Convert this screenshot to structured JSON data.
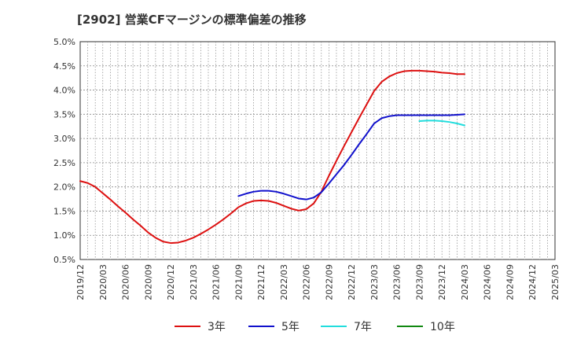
{
  "chart_data": {
    "type": "line",
    "title": "[2902]  営業CFマージンの標準偏差の推移",
    "xlabel": "",
    "ylabel": "",
    "x_ticks": [
      "2019/12",
      "2020/03",
      "2020/06",
      "2020/09",
      "2020/12",
      "2021/03",
      "2021/06",
      "2021/09",
      "2021/12",
      "2022/03",
      "2022/06",
      "2022/09",
      "2022/12",
      "2023/03",
      "2023/06",
      "2023/09",
      "2023/12",
      "2024/03",
      "2024/06",
      "2024/09",
      "2024/12",
      "2025/03"
    ],
    "y_ticks": [
      "0.5%",
      "1.0%",
      "1.5%",
      "2.0%",
      "2.5%",
      "3.0%",
      "3.5%",
      "4.0%",
      "4.5%",
      "5.0%"
    ],
    "ylim": [
      0.5,
      5.0
    ],
    "y_unit": "%",
    "grid": true,
    "legend_position": "bottom",
    "series": [
      {
        "name": "3年",
        "color": "#dd1111",
        "x": [
          "2019/12",
          "2020/01",
          "2020/02",
          "2020/03",
          "2020/04",
          "2020/05",
          "2020/06",
          "2020/07",
          "2020/08",
          "2020/09",
          "2020/10",
          "2020/11",
          "2020/12",
          "2021/01",
          "2021/02",
          "2021/03",
          "2021/04",
          "2021/05",
          "2021/06",
          "2021/07",
          "2021/08",
          "2021/09",
          "2021/10",
          "2021/11",
          "2021/12",
          "2022/01",
          "2022/02",
          "2022/03",
          "2022/04",
          "2022/05",
          "2022/06",
          "2022/07",
          "2022/08",
          "2022/09",
          "2022/10",
          "2022/11",
          "2022/12",
          "2023/01",
          "2023/02",
          "2023/03",
          "2023/04",
          "2023/05",
          "2023/06",
          "2023/07",
          "2023/08",
          "2023/09",
          "2023/10",
          "2023/11",
          "2023/12",
          "2024/01",
          "2024/02",
          "2024/03"
        ],
        "values": [
          2.12,
          2.08,
          2.0,
          1.87,
          1.74,
          1.6,
          1.47,
          1.33,
          1.2,
          1.06,
          0.95,
          0.87,
          0.84,
          0.85,
          0.89,
          0.95,
          1.03,
          1.12,
          1.22,
          1.33,
          1.45,
          1.58,
          1.66,
          1.71,
          1.72,
          1.71,
          1.67,
          1.61,
          1.55,
          1.51,
          1.54,
          1.66,
          1.9,
          2.23,
          2.54,
          2.84,
          3.13,
          3.42,
          3.7,
          3.98,
          4.17,
          4.28,
          4.35,
          4.39,
          4.4,
          4.4,
          4.39,
          4.38,
          4.36,
          4.35,
          4.33,
          4.33
        ]
      },
      {
        "name": "5年",
        "color": "#1111cc",
        "x": [
          "2021/09",
          "2021/10",
          "2021/11",
          "2021/12",
          "2022/01",
          "2022/02",
          "2022/03",
          "2022/04",
          "2022/05",
          "2022/06",
          "2022/07",
          "2022/08",
          "2022/09",
          "2022/10",
          "2022/11",
          "2022/12",
          "2023/01",
          "2023/02",
          "2023/03",
          "2023/04",
          "2023/05",
          "2023/06",
          "2023/07",
          "2023/08",
          "2023/09",
          "2023/10",
          "2023/11",
          "2023/12",
          "2024/01",
          "2024/02",
          "2024/03"
        ],
        "values": [
          1.81,
          1.86,
          1.9,
          1.92,
          1.92,
          1.9,
          1.86,
          1.81,
          1.76,
          1.74,
          1.78,
          1.89,
          2.07,
          2.26,
          2.45,
          2.66,
          2.88,
          3.09,
          3.31,
          3.42,
          3.46,
          3.48,
          3.48,
          3.48,
          3.48,
          3.48,
          3.48,
          3.48,
          3.48,
          3.49,
          3.5
        ]
      },
      {
        "name": "7年",
        "color": "#22dddd",
        "x": [
          "2023/09",
          "2023/10",
          "2023/11",
          "2023/12",
          "2024/01",
          "2024/02",
          "2024/03"
        ],
        "values": [
          3.36,
          3.37,
          3.37,
          3.36,
          3.34,
          3.31,
          3.27
        ]
      },
      {
        "name": "10年",
        "color": "#118811",
        "x": [],
        "values": []
      }
    ]
  }
}
